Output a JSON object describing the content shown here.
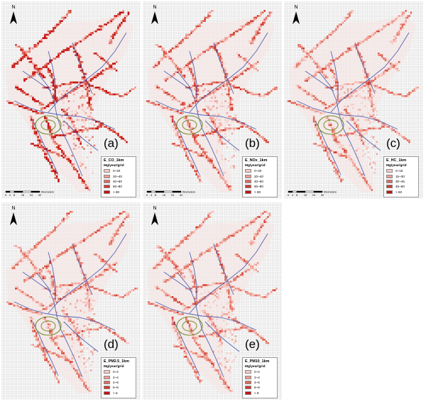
{
  "legend_colors": [
    "#f7c9c3",
    "#ee9c91",
    "#e06b5c",
    "#d23a2f",
    "#c41010"
  ],
  "road_color": "#3a4fa8",
  "ring_color": "#6e8a2a",
  "grid_color": "#c9c9c9",
  "scale": {
    "ticks": [
      "0",
      "4",
      "8",
      "16",
      "24",
      "32"
    ],
    "unit": "Kilometers"
  },
  "north_label": "N",
  "panels": [
    {
      "id": "a",
      "label": "(a)",
      "title": "E_CO_1km",
      "unit": "Mg/year/grid",
      "classes": [
        "0~20",
        "20~40",
        "40~60",
        "60~80",
        "> 80"
      ],
      "intensity": 1.0
    },
    {
      "id": "b",
      "label": "(b)",
      "title": "E_NOx_1km",
      "unit": "Mg/year/grid",
      "classes": [
        "0~20",
        "20~40",
        "40~60",
        "60~80",
        "> 80"
      ],
      "intensity": 0.62
    },
    {
      "id": "c",
      "label": "(c)",
      "title": "E_HC_1km",
      "unit": "Mg/year/grid",
      "classes": [
        "0~15",
        "15~30",
        "30~45",
        "45~60",
        "> 60"
      ],
      "intensity": 0.5
    },
    {
      "id": "d",
      "label": "(d)",
      "title": "E_PM2.5_1km",
      "unit": "Mg/year/grid",
      "classes": [
        "0~2",
        "2~4",
        "4~6",
        "6~8",
        "> 8"
      ],
      "intensity": 0.52
    },
    {
      "id": "e",
      "label": "(e)",
      "title": "E_PM10_1km",
      "unit": "Mg/year/grid",
      "classes": [
        "0~2",
        "2~4",
        "4~6",
        "6~8",
        "> 8"
      ],
      "intensity": 0.52
    }
  ]
}
